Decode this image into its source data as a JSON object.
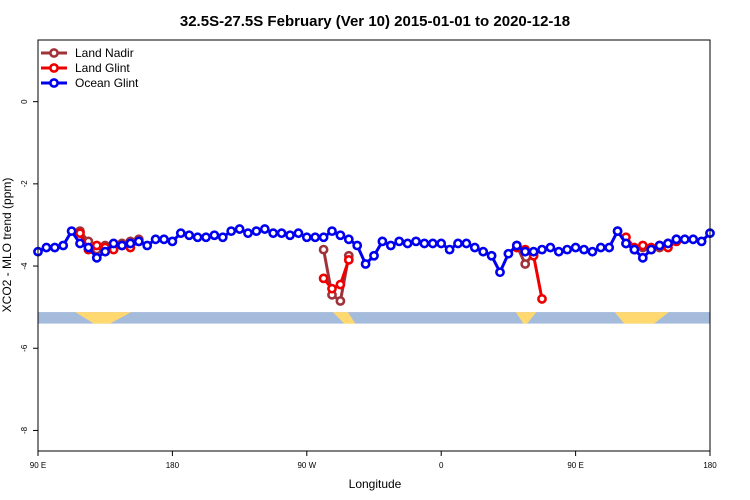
{
  "chart_data": {
    "type": "line",
    "title": "32.5S-27.5S February (Ver 10)   2015-01-01 to 2020-12-18",
    "xlabel": "Longitude",
    "ylabel": "XCO2 - MLO trend (ppm)",
    "xlim": [
      90,
      450
    ],
    "ylim": [
      -8.5,
      1.5
    ],
    "x_ticks": [
      90,
      162,
      234,
      306,
      378,
      450
    ],
    "x_tick_labels": [
      "90 E",
      "180",
      "90 W",
      "0",
      "90 E",
      "180"
    ],
    "y_ticks": [
      0,
      -2,
      -4,
      -6,
      -8
    ],
    "y_tick_labels": [
      "0",
      "-2",
      "-4",
      "-6",
      "-8"
    ],
    "grid": false,
    "legend_position": "top-left",
    "series": [
      {
        "name": "Land Nadir",
        "color": "#a0333a",
        "points": [
          [
            112.5,
            -3.15
          ],
          [
            117.0,
            -3.4
          ],
          [
            121.5,
            -3.6
          ],
          [
            126.0,
            -3.5
          ],
          [
            130.5,
            -3.55
          ],
          [
            135.0,
            -3.45
          ],
          [
            139.5,
            -3.4
          ],
          [
            144.0,
            -3.35
          ],
          [
            243.0,
            -3.6
          ],
          [
            247.5,
            -4.7
          ],
          [
            252.0,
            -4.85
          ],
          [
            256.5,
            -3.75
          ],
          [
            346.5,
            -3.5
          ],
          [
            351.0,
            -3.95
          ],
          [
            355.5,
            -3.7
          ],
          [
            400.5,
            -3.15
          ],
          [
            405.0,
            -3.45
          ],
          [
            409.5,
            -3.6
          ],
          [
            414.0,
            -3.55
          ],
          [
            418.5,
            -3.6
          ],
          [
            423.0,
            -3.55
          ],
          [
            427.5,
            -3.45
          ],
          [
            432.0,
            -3.35
          ]
        ]
      },
      {
        "name": "Land Glint",
        "color": "#ee0000",
        "points": [
          [
            112.5,
            -3.2
          ],
          [
            117.0,
            -3.6
          ],
          [
            121.5,
            -3.5
          ],
          [
            126.0,
            -3.55
          ],
          [
            130.5,
            -3.6
          ],
          [
            135.0,
            -3.5
          ],
          [
            139.5,
            -3.55
          ],
          [
            144.0,
            -3.4
          ],
          [
            243.0,
            -4.3
          ],
          [
            247.5,
            -4.55
          ],
          [
            252.0,
            -4.45
          ],
          [
            256.5,
            -3.85
          ],
          [
            346.5,
            -3.55
          ],
          [
            351.0,
            -3.6
          ],
          [
            355.5,
            -3.75
          ],
          [
            360.0,
            -4.8
          ],
          [
            405.0,
            -3.3
          ],
          [
            409.5,
            -3.55
          ],
          [
            414.0,
            -3.5
          ],
          [
            418.5,
            -3.55
          ],
          [
            423.0,
            -3.5
          ],
          [
            427.5,
            -3.55
          ],
          [
            432.0,
            -3.4
          ]
        ]
      },
      {
        "name": "Ocean Glint",
        "color": "#0000ee",
        "points": [
          [
            90.0,
            -3.65
          ],
          [
            94.5,
            -3.55
          ],
          [
            99.0,
            -3.55
          ],
          [
            103.5,
            -3.5
          ],
          [
            108.0,
            -3.15
          ],
          [
            112.5,
            -3.45
          ],
          [
            117.0,
            -3.55
          ],
          [
            121.5,
            -3.8
          ],
          [
            126.0,
            -3.65
          ],
          [
            130.5,
            -3.45
          ],
          [
            135.0,
            -3.5
          ],
          [
            139.5,
            -3.45
          ],
          [
            144.0,
            -3.4
          ],
          [
            148.5,
            -3.5
          ],
          [
            153.0,
            -3.35
          ],
          [
            157.5,
            -3.35
          ],
          [
            162.0,
            -3.4
          ],
          [
            166.5,
            -3.2
          ],
          [
            171.0,
            -3.25
          ],
          [
            175.5,
            -3.3
          ],
          [
            180.0,
            -3.3
          ],
          [
            184.5,
            -3.25
          ],
          [
            189.0,
            -3.3
          ],
          [
            193.5,
            -3.15
          ],
          [
            198.0,
            -3.1
          ],
          [
            202.5,
            -3.2
          ],
          [
            207.0,
            -3.15
          ],
          [
            211.5,
            -3.1
          ],
          [
            216.0,
            -3.2
          ],
          [
            220.5,
            -3.2
          ],
          [
            225.0,
            -3.25
          ],
          [
            229.5,
            -3.2
          ],
          [
            234.0,
            -3.3
          ],
          [
            238.5,
            -3.3
          ],
          [
            243.0,
            -3.3
          ],
          [
            247.5,
            -3.15
          ],
          [
            252.0,
            -3.25
          ],
          [
            256.5,
            -3.35
          ],
          [
            261.0,
            -3.5
          ],
          [
            265.5,
            -3.95
          ],
          [
            270.0,
            -3.75
          ],
          [
            274.5,
            -3.4
          ],
          [
            279.0,
            -3.5
          ],
          [
            283.5,
            -3.4
          ],
          [
            288.0,
            -3.45
          ],
          [
            292.5,
            -3.4
          ],
          [
            297.0,
            -3.45
          ],
          [
            301.5,
            -3.45
          ],
          [
            306.0,
            -3.45
          ],
          [
            310.5,
            -3.6
          ],
          [
            315.0,
            -3.45
          ],
          [
            319.5,
            -3.45
          ],
          [
            324.0,
            -3.55
          ],
          [
            328.5,
            -3.65
          ],
          [
            333.0,
            -3.75
          ],
          [
            337.5,
            -4.15
          ],
          [
            342.0,
            -3.7
          ],
          [
            346.5,
            -3.5
          ],
          [
            351.0,
            -3.65
          ],
          [
            355.5,
            -3.65
          ],
          [
            360.0,
            -3.6
          ],
          [
            364.5,
            -3.55
          ],
          [
            369.0,
            -3.65
          ],
          [
            373.5,
            -3.6
          ],
          [
            378.0,
            -3.55
          ],
          [
            382.5,
            -3.6
          ],
          [
            387.0,
            -3.65
          ],
          [
            391.5,
            -3.55
          ],
          [
            396.0,
            -3.55
          ],
          [
            400.5,
            -3.15
          ],
          [
            405.0,
            -3.45
          ],
          [
            409.5,
            -3.6
          ],
          [
            414.0,
            -3.8
          ],
          [
            418.5,
            -3.6
          ],
          [
            423.0,
            -3.5
          ],
          [
            427.5,
            -3.45
          ],
          [
            432.0,
            -3.35
          ],
          [
            436.5,
            -3.35
          ],
          [
            441.0,
            -3.35
          ],
          [
            445.5,
            -3.4
          ],
          [
            450.0,
            -3.2
          ]
        ]
      }
    ],
    "land_ocean_strip": {
      "y_range": [
        -5.4,
        -5.12
      ],
      "ocean_color": "#a5bbdc",
      "land_color": "#ffd970",
      "land_spans": [
        [
          110.0,
          120.0,
          128.5,
          140.0
        ],
        [
          248.0,
          254.0,
          260.0,
          256.0
        ],
        [
          346.0,
          350.0,
          352.0,
          357.0
        ],
        [
          399.0,
          404.0,
          420.0,
          428.0
        ]
      ]
    }
  }
}
